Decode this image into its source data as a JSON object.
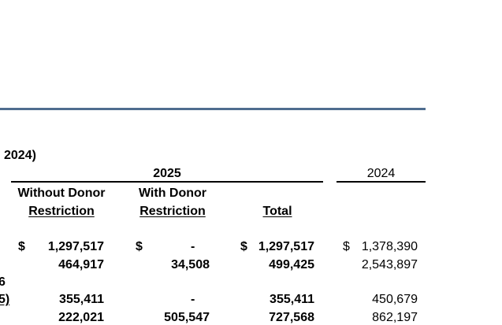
{
  "colors": {
    "header_rule": "#4f6d8f",
    "text": "#000000"
  },
  "report": {
    "period_fragment": "2024)"
  },
  "columns": {
    "year_current": "2025",
    "year_prior": "2024",
    "without_donor_line1": "Without Donor",
    "without_donor_line2": "Restriction",
    "with_donor_line1": "With Donor",
    "with_donor_line2": "Restriction",
    "total": "Total"
  },
  "rows": [
    {
      "label": "",
      "wdr_currency": "$",
      "wdr": "1,297,517",
      "wd_currency": "$",
      "wd": "-",
      "total_currency": "$",
      "total": "1,297,517",
      "prior_currency": "$",
      "prior": "1,378,390"
    },
    {
      "label": "",
      "wdr_currency": "",
      "wdr": "464,917",
      "wd_currency": "",
      "wd": "34,508",
      "total_currency": "",
      "total": "499,425",
      "prior_currency": "",
      "prior": "2,543,897"
    },
    {
      "label": "6",
      "wdr_currency": "",
      "wdr": "",
      "wd_currency": "",
      "wd": "",
      "total_currency": "",
      "total": "",
      "prior_currency": "",
      "prior": ""
    },
    {
      "label": "5)",
      "wdr_currency": "",
      "wdr": "355,411",
      "wd_currency": "",
      "wd": "-",
      "total_currency": "",
      "total": "355,411",
      "prior_currency": "",
      "prior": "450,679"
    },
    {
      "label": "",
      "wdr_currency": "",
      "wdr": "222,021",
      "wd_currency": "",
      "wd": "505,547",
      "total_currency": "",
      "total": "727,568",
      "prior_currency": "",
      "prior": "862,197"
    }
  ]
}
